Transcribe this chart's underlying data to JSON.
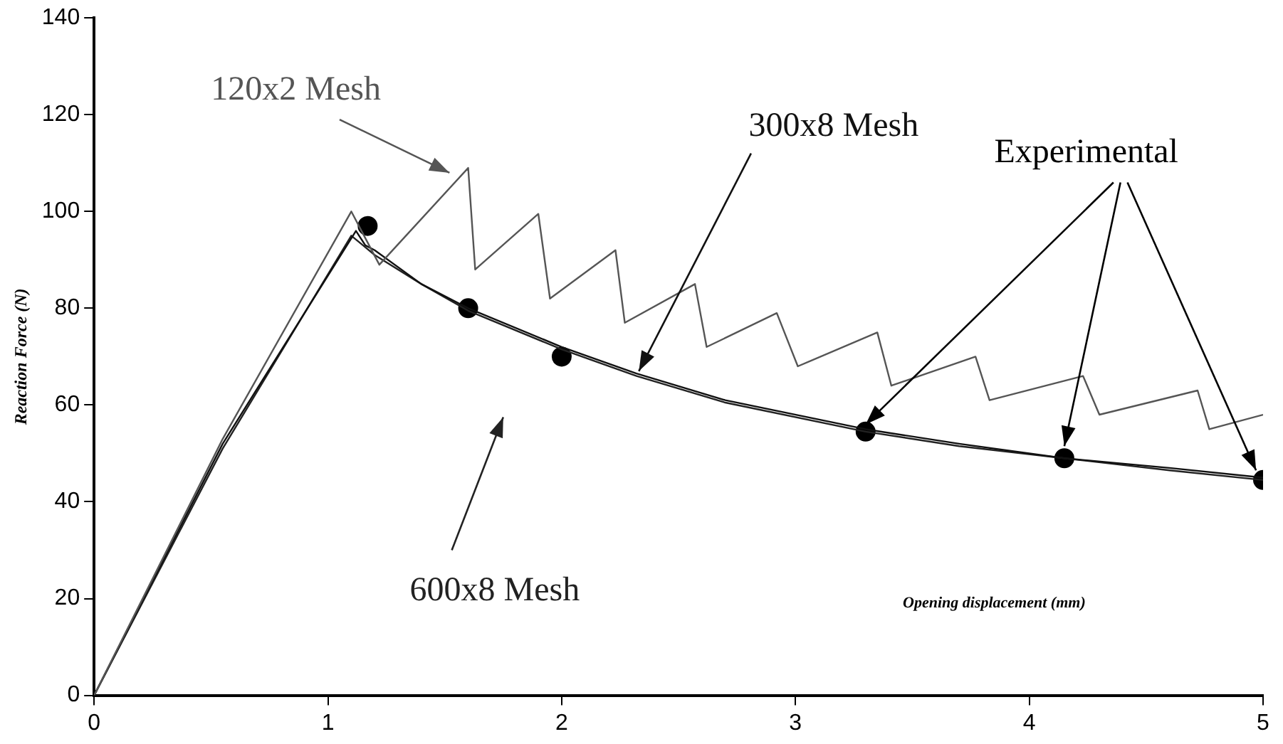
{
  "chart_data": {
    "type": "line",
    "xlabel": "Opening displacement (mm)",
    "ylabel": "Reaction Force (N)",
    "xlim": [
      0,
      5
    ],
    "xticks": [
      0,
      1,
      2,
      3,
      4,
      5
    ],
    "ylim": [
      0,
      140
    ],
    "yticks": [
      0,
      20,
      40,
      60,
      80,
      100,
      120,
      140
    ],
    "grid": false,
    "legend": false,
    "series": [
      {
        "name": "120x2 Mesh",
        "color": "#555555",
        "x": [
          0,
          0.55,
          1.1,
          1.22,
          1.6,
          1.63,
          1.9,
          1.95,
          2.23,
          2.27,
          2.57,
          2.62,
          2.92,
          3.01,
          3.35,
          3.41,
          3.77,
          3.83,
          4.23,
          4.3,
          4.72,
          4.77,
          5
        ],
        "values": [
          0,
          53,
          100,
          89,
          109,
          88,
          99.5,
          82,
          92,
          77,
          85,
          72,
          79,
          68,
          75,
          64,
          70,
          61,
          66,
          58,
          63,
          55,
          58
        ]
      },
      {
        "name": "300x8 Mesh",
        "color": "#111111",
        "x": [
          0,
          0.55,
          1.12,
          1.16,
          1.2,
          1.4,
          1.6,
          2.0,
          2.32,
          2.7,
          3.3,
          3.7,
          4.15,
          4.6,
          5
        ],
        "values": [
          0,
          52,
          96,
          93,
          92,
          85,
          80,
          72,
          66.5,
          61,
          55,
          52,
          49,
          47,
          45
        ]
      },
      {
        "name": "600x8 Mesh",
        "color": "#222222",
        "x": [
          0,
          0.55,
          1.1,
          1.15,
          1.2,
          1.4,
          1.6,
          2.0,
          2.32,
          2.7,
          3.3,
          3.7,
          4.15,
          4.6,
          5
        ],
        "values": [
          0,
          51,
          95,
          93,
          91,
          85,
          79.5,
          71.5,
          66,
          60.5,
          54.5,
          51.5,
          49,
          46.5,
          44.5
        ]
      },
      {
        "name": "Experimental",
        "type": "scatter",
        "marker": "circle",
        "color": "#000000",
        "x": [
          1.17,
          1.6,
          2.0,
          3.3,
          4.15,
          5
        ],
        "values": [
          97,
          80,
          70,
          54.5,
          49,
          44.5
        ]
      }
    ]
  }
}
